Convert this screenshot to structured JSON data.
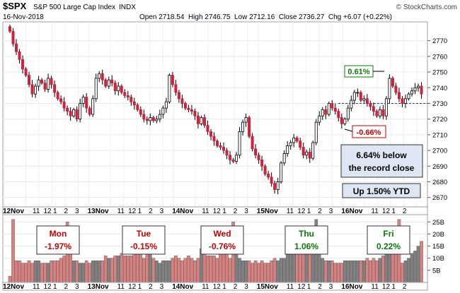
{
  "header": {
    "symbol": "$SPX",
    "name": "S&P 500 Large Cap Index",
    "exchange": "INDX",
    "date": "16-Nov-2018",
    "source": "© StockCharts.com",
    "ohlc": "Open 2718.54  High 2746.75  Low 2712.16  Close 2736.27  Chg +6.07 (+0.22%)"
  },
  "chart_data": {
    "type": "candlestick",
    "title": "$SPX S&P 500 Large Cap Index INDX",
    "ylim": [
      2664,
      2782
    ],
    "yticks": [
      2670,
      2680,
      2690,
      2700,
      2710,
      2720,
      2730,
      2740,
      2750,
      2760,
      2770
    ],
    "reference_line": 2730,
    "x_days": [
      "12Nov",
      "13Nov",
      "14Nov",
      "15Nov",
      "16Nov"
    ],
    "x_intraday_ticks": [
      "11",
      "12",
      "1",
      "2",
      "3"
    ],
    "closes": [
      2776,
      2768,
      2763,
      2758,
      2752,
      2748,
      2742,
      2736,
      2741,
      2745,
      2743,
      2739,
      2746,
      2742,
      2737,
      2733,
      2731,
      2727,
      2725,
      2722,
      2726,
      2720,
      2730,
      2734,
      2727,
      2723,
      2733,
      2746,
      2749,
      2745,
      2741,
      2745,
      2743,
      2738,
      2741,
      2737,
      2735,
      2734,
      2731,
      2729,
      2726,
      2723,
      2720,
      2719,
      2721,
      2719,
      2720,
      2723,
      2727,
      2731,
      2748,
      2742,
      2737,
      2733,
      2730,
      2727,
      2726,
      2725,
      2722,
      2717,
      2721,
      2716,
      2712,
      2709,
      2706,
      2703,
      2702,
      2700,
      2697,
      2694,
      2693,
      2697,
      2712,
      2718,
      2721,
      2709,
      2701,
      2697,
      2694,
      2690,
      2685,
      2683,
      2679,
      2675,
      2680,
      2692,
      2698,
      2703,
      2705,
      2708,
      2706,
      2702,
      2697,
      2699,
      2695,
      2705,
      2718,
      2722,
      2726,
      2723,
      2730,
      2727,
      2725,
      2721,
      2717,
      2720,
      2727,
      2732,
      2737,
      2737,
      2732,
      2733,
      2730,
      2728,
      2725,
      2722,
      2726,
      2722,
      2733,
      2746,
      2741,
      2737,
      2733,
      2730,
      2733,
      2736,
      2738,
      2740,
      2741,
      2736
    ],
    "annotations": [
      {
        "text": "0.61%",
        "color": "#0a7a0a"
      },
      {
        "text": "-0.66%",
        "color": "#cc0000"
      },
      {
        "text": "6.64% below the record close",
        "lines": [
          "6.64% below",
          "the record close"
        ]
      },
      {
        "text": "Up 1.50% YTD"
      }
    ],
    "volume": {
      "yticks": [
        "5B",
        "10B",
        "15B",
        "20B",
        "25B"
      ],
      "values": [
        2.6,
        26,
        9,
        9,
        8,
        8,
        9,
        8,
        9,
        9,
        8,
        8,
        8,
        9,
        9,
        9,
        10,
        11,
        25,
        12,
        9,
        9,
        8,
        8,
        9,
        8,
        9,
        9,
        9,
        9,
        11,
        10,
        10,
        11,
        11,
        12,
        11,
        11,
        11,
        12,
        14,
        13,
        10,
        12,
        20,
        10,
        9,
        8,
        9,
        9,
        9,
        10,
        11,
        10,
        9,
        10,
        11,
        10,
        9,
        10,
        14,
        12,
        11,
        11,
        11,
        10,
        13,
        12,
        14,
        10,
        25,
        13,
        10,
        9,
        9,
        9,
        8,
        9,
        8,
        9,
        8,
        8,
        9,
        10,
        9,
        10,
        10,
        12,
        13,
        14,
        17,
        16,
        13,
        12,
        13,
        12,
        26,
        13,
        10,
        9,
        9,
        9,
        8,
        8,
        8,
        9,
        9,
        9,
        9,
        9,
        9,
        9,
        10,
        9,
        10,
        9,
        10,
        11,
        13,
        14,
        14,
        20,
        26,
        8,
        9,
        10,
        12,
        13,
        15,
        17
      ],
      "day_labels": [
        {
          "day": "Mon",
          "pct": "-1.97%",
          "color": "#cc0000"
        },
        {
          "day": "Tue",
          "pct": "-0.15%",
          "color": "#cc0000"
        },
        {
          "day": "Wed",
          "pct": "-0.76%",
          "color": "#cc0000"
        },
        {
          "day": "Thu",
          "pct": "1.06%",
          "color": "#0a7a0a"
        },
        {
          "day": "Fri",
          "pct": "0.22%",
          "color": "#0a7a0a"
        }
      ]
    },
    "colors": {
      "up": "#ffffff",
      "down": "#d0213c",
      "vol_up": "#808080",
      "vol_down": "#d98080",
      "ref_line": "#1e3cb4",
      "annot_bg": "#dde6f2"
    }
  }
}
